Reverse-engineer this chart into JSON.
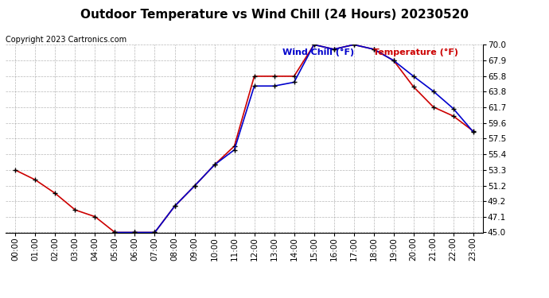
{
  "title": "Outdoor Temperature vs Wind Chill (24 Hours) 20230520",
  "copyright": "Copyright 2023 Cartronics.com",
  "legend_wind_chill": "Wind Chill (°F)",
  "legend_temperature": "Temperature (°F)",
  "hours": [
    "00:00",
    "01:00",
    "02:00",
    "03:00",
    "04:00",
    "05:00",
    "06:00",
    "07:00",
    "08:00",
    "09:00",
    "10:00",
    "11:00",
    "12:00",
    "13:00",
    "14:00",
    "15:00",
    "16:00",
    "17:00",
    "18:00",
    "19:00",
    "20:00",
    "21:00",
    "22:00",
    "23:00"
  ],
  "temperature": [
    53.3,
    52.0,
    50.2,
    48.0,
    47.1,
    45.0,
    45.0,
    45.0,
    48.5,
    51.2,
    54.0,
    56.5,
    65.8,
    65.8,
    65.8,
    70.0,
    69.4,
    70.0,
    69.4,
    67.9,
    64.4,
    61.7,
    60.5,
    58.5
  ],
  "wind_chill": [
    null,
    null,
    null,
    null,
    null,
    45.0,
    45.0,
    45.0,
    48.5,
    51.2,
    54.0,
    56.0,
    64.5,
    64.5,
    65.0,
    70.0,
    69.4,
    70.0,
    69.4,
    67.9,
    65.8,
    63.8,
    61.5,
    58.4
  ],
  "ylim": [
    45.0,
    70.0
  ],
  "yticks": [
    45.0,
    47.1,
    49.2,
    51.2,
    53.3,
    55.4,
    57.5,
    59.6,
    61.7,
    63.8,
    65.8,
    67.9,
    70.0
  ],
  "temp_color": "#cc0000",
  "wind_chill_color": "#0000cc",
  "bg_color": "#ffffff",
  "grid_color": "#999999",
  "title_fontsize": 11,
  "copyright_fontsize": 7,
  "legend_fontsize": 8,
  "tick_fontsize": 7.5
}
